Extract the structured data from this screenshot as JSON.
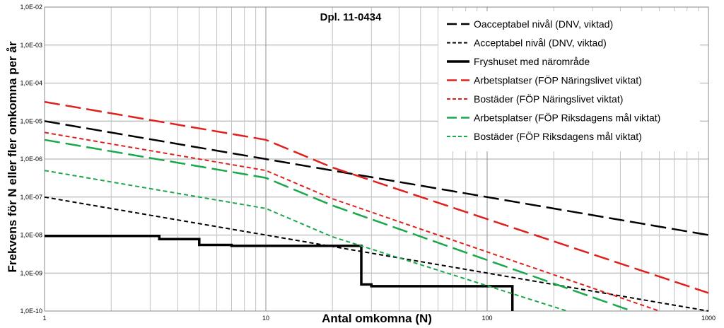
{
  "chart_data": {
    "type": "line",
    "title": "Dpl. 11-0434",
    "xlabel": "Antal omkomna (N)",
    "ylabel": "Frekvens för N eller fler omkomna per år",
    "x_scale": "log",
    "y_scale": "log",
    "xlim": [
      1,
      1000
    ],
    "ylim": [
      1e-10,
      0.01
    ],
    "x_ticks": [
      "1",
      "10",
      "100",
      "1000"
    ],
    "y_ticks": [
      "1,0E-10",
      "1,0E-09",
      "1,0E-08",
      "1,0E-07",
      "1,0E-06",
      "1,0E-05",
      "1,0E-04",
      "1,0E-03",
      "1,0E-02"
    ],
    "grid": true,
    "legend_position": "top-right",
    "series": [
      {
        "name": "Oacceptabel nivål (DNV, viktad)",
        "color": "#000000",
        "style": "longdash",
        "width": 2.5,
        "points": [
          [
            1,
            1e-05
          ],
          [
            1000,
            1e-08
          ]
        ]
      },
      {
        "name": "Acceptabel nivål (DNV, viktad)",
        "color": "#000000",
        "style": "shortdash",
        "width": 2,
        "points": [
          [
            1,
            1e-07
          ],
          [
            1000,
            1e-10
          ]
        ]
      },
      {
        "name": "Fryshuset med närområde",
        "color": "#000000",
        "style": "solid",
        "width": 3.5,
        "points": [
          [
            1,
            9.5e-09
          ],
          [
            3.3,
            9.5e-09
          ],
          [
            3.3,
            7.8e-09
          ],
          [
            5,
            7.8e-09
          ],
          [
            5,
            5.5e-09
          ],
          [
            7,
            5.5e-09
          ],
          [
            7,
            5.2e-09
          ],
          [
            26,
            5.2e-09
          ],
          [
            26,
            5.2e-09
          ],
          [
            27,
            5.2e-09
          ],
          [
            27,
            5e-10
          ],
          [
            30,
            5e-10
          ],
          [
            30,
            4.5e-10
          ],
          [
            130,
            4.5e-10
          ],
          [
            130,
            1e-10
          ]
        ]
      },
      {
        "name": "Arbetsplatser (FÖP Näringslivet viktat)",
        "color": "#e0201c",
        "style": "longdash",
        "width": 2.5,
        "points": [
          [
            1,
            3.2e-05
          ],
          [
            10,
            3.2e-06
          ],
          [
            20,
            6e-07
          ],
          [
            1000,
            3e-10
          ]
        ]
      },
      {
        "name": "Bostäder (FÖP Näringslivet viktat)",
        "color": "#e0201c",
        "style": "shortdash",
        "width": 2,
        "points": [
          [
            1,
            5e-06
          ],
          [
            10,
            5e-07
          ],
          [
            20,
            9e-08
          ],
          [
            600,
            1e-10
          ]
        ]
      },
      {
        "name": "Arbetsplatser (FÖP Riksdagens mål viktat)",
        "color": "#1aa84a",
        "style": "longdash",
        "width": 2.5,
        "points": [
          [
            1,
            3.2e-06
          ],
          [
            10,
            3.2e-07
          ],
          [
            20,
            6e-08
          ],
          [
            450,
            1e-10
          ]
        ]
      },
      {
        "name": "Bostäder (FÖP Riksdagens mål viktat)",
        "color": "#1aa84a",
        "style": "shortdash",
        "width": 2,
        "points": [
          [
            1,
            5e-07
          ],
          [
            10,
            5e-08
          ],
          [
            20,
            9e-09
          ],
          [
            230,
            1e-10
          ]
        ]
      }
    ]
  }
}
